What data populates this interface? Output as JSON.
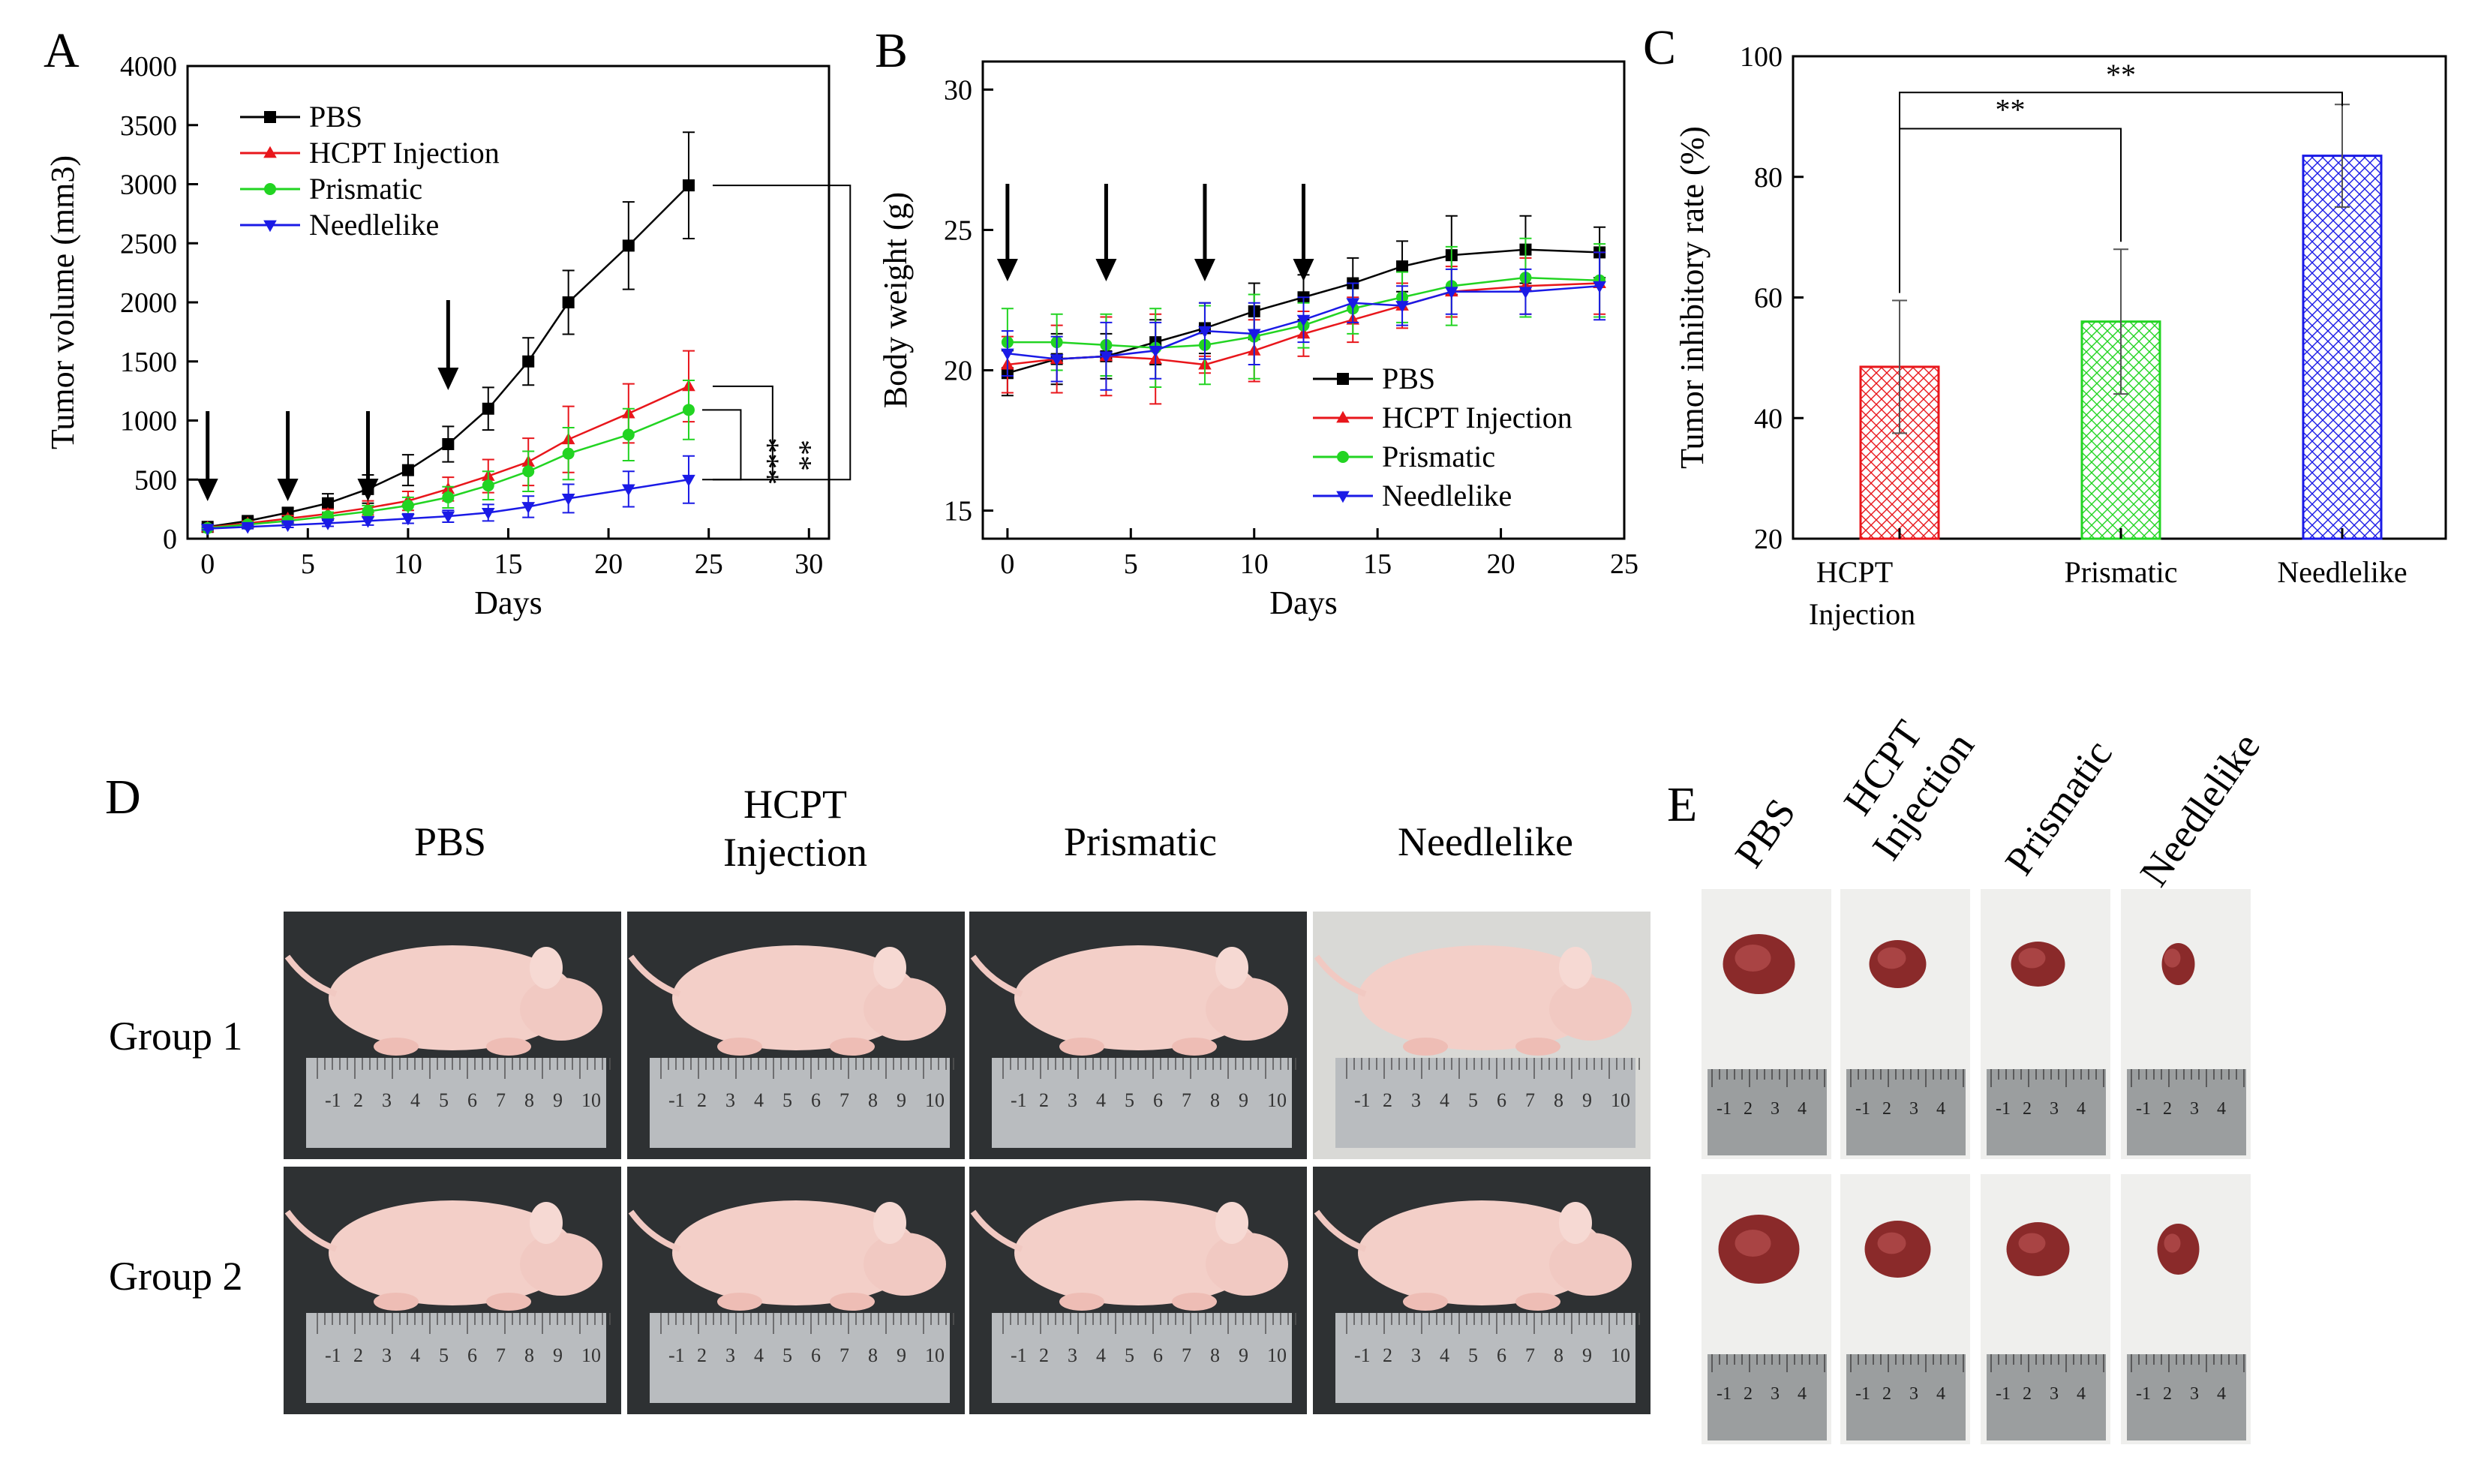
{
  "chart_data": [
    {
      "panel": "A",
      "type": "line",
      "xlabel": "Days",
      "ylabel": "Tumor volume (mm3)",
      "xlim": [
        -1,
        31
      ],
      "ylim": [
        0,
        4000
      ],
      "xticks": [
        0,
        5,
        10,
        15,
        20,
        25,
        30
      ],
      "yticks": [
        0,
        500,
        1000,
        1500,
        2000,
        2500,
        3000,
        3500,
        4000
      ],
      "x": [
        0,
        2,
        4,
        6,
        8,
        10,
        12,
        14,
        16,
        18,
        21,
        24
      ],
      "dosing_days": [
        0,
        4,
        8,
        12
      ],
      "series": [
        {
          "name": "PBS",
          "color": "#000000",
          "marker": "square",
          "values": [
            100,
            150,
            220,
            300,
            420,
            580,
            800,
            1100,
            1500,
            2000,
            2480,
            2990
          ],
          "errors": [
            20,
            30,
            40,
            80,
            120,
            130,
            150,
            180,
            200,
            270,
            370,
            450
          ]
        },
        {
          "name": "HCPT Injection",
          "color": "#e8161b",
          "marker": "triangle",
          "values": [
            95,
            130,
            170,
            210,
            260,
            320,
            420,
            530,
            650,
            840,
            1060,
            1290
          ],
          "errors": [
            15,
            20,
            25,
            40,
            60,
            80,
            100,
            140,
            200,
            280,
            250,
            300
          ]
        },
        {
          "name": "Prismatic",
          "color": "#22d422",
          "marker": "circle",
          "values": [
            90,
            120,
            150,
            190,
            230,
            280,
            350,
            450,
            570,
            720,
            880,
            1090
          ],
          "errors": [
            15,
            20,
            25,
            35,
            50,
            70,
            90,
            120,
            170,
            220,
            220,
            250
          ]
        },
        {
          "name": "Needlelike",
          "color": "#1a1ae6",
          "marker": "triangle-down",
          "values": [
            85,
            100,
            115,
            130,
            150,
            170,
            190,
            220,
            270,
            340,
            420,
            500
          ],
          "errors": [
            10,
            15,
            20,
            25,
            35,
            40,
            50,
            70,
            90,
            120,
            150,
            200
          ]
        }
      ],
      "significance": [
        {
          "label": "**",
          "between": [
            "PBS",
            "Needlelike"
          ]
        },
        {
          "label": "***",
          "between": [
            "HCPT Injection",
            "Needlelike"
          ]
        },
        {
          "label": "**",
          "between": [
            "Prismatic",
            "Needlelike"
          ]
        }
      ]
    },
    {
      "panel": "B",
      "type": "line",
      "xlabel": "Days",
      "ylabel": "Body weight (g)",
      "xlim": [
        -1,
        25
      ],
      "ylim": [
        14,
        31
      ],
      "xticks": [
        0,
        5,
        10,
        15,
        20,
        25
      ],
      "yticks": [
        15,
        20,
        25,
        30
      ],
      "x": [
        0,
        2,
        4,
        6,
        8,
        10,
        12,
        14,
        16,
        18,
        21,
        24
      ],
      "dosing_days": [
        0,
        4,
        8,
        12
      ],
      "series": [
        {
          "name": "PBS",
          "color": "#000000",
          "marker": "square",
          "values": [
            19.9,
            20.4,
            20.5,
            21.0,
            21.5,
            22.1,
            22.6,
            23.1,
            23.7,
            24.1,
            24.3,
            24.2
          ],
          "errors": [
            0.8,
            0.9,
            0.8,
            0.8,
            0.9,
            1.0,
            0.8,
            0.9,
            0.9,
            1.4,
            1.2,
            0.9
          ]
        },
        {
          "name": "HCPT Injection",
          "color": "#e8161b",
          "marker": "triangle",
          "values": [
            20.2,
            20.4,
            20.5,
            20.4,
            20.2,
            20.7,
            21.3,
            21.8,
            22.3,
            22.8,
            23.0,
            23.1
          ],
          "errors": [
            1.0,
            1.2,
            1.4,
            1.6,
            0.3,
            1.1,
            0.8,
            0.8,
            0.8,
            0.9,
            1.0,
            1.1
          ]
        },
        {
          "name": "Prismatic",
          "color": "#22d422",
          "marker": "circle",
          "values": [
            21.0,
            21.0,
            20.9,
            20.8,
            20.9,
            21.2,
            21.6,
            22.2,
            22.6,
            23.0,
            23.3,
            23.2
          ],
          "errors": [
            1.2,
            1.0,
            1.1,
            1.4,
            1.4,
            1.5,
            0.8,
            0.9,
            0.9,
            1.4,
            1.4,
            1.3
          ]
        },
        {
          "name": "Needlelike",
          "color": "#1a1ae6",
          "marker": "triangle-down",
          "values": [
            20.6,
            20.4,
            20.5,
            20.7,
            21.4,
            21.3,
            21.8,
            22.4,
            22.3,
            22.8,
            22.8,
            23.0
          ],
          "errors": [
            0.8,
            0.8,
            1.2,
            1.0,
            1.0,
            1.1,
            0.8,
            0.7,
            0.7,
            0.8,
            0.8,
            1.2
          ]
        }
      ]
    },
    {
      "panel": "C",
      "type": "bar",
      "ylabel": "Tumor inhibitory rate (%)",
      "ylim": [
        20,
        100
      ],
      "yticks": [
        20,
        40,
        60,
        80,
        100
      ],
      "categories": [
        "HCPT Injection",
        "Prismatic",
        "Needlelike"
      ],
      "category_lines": [
        [
          "HCPT",
          "Injection"
        ],
        [
          "Prismatic"
        ],
        [
          "Needlelike"
        ]
      ],
      "values": [
        48.5,
        56,
        83.5
      ],
      "errors": [
        11,
        12,
        8.5
      ],
      "colors": [
        "#e8161b",
        "#22d422",
        "#1a1ae6"
      ],
      "significance": [
        {
          "label": "**",
          "between": [
            "HCPT Injection",
            "Prismatic"
          ]
        },
        {
          "label": "**",
          "between": [
            "HCPT Injection",
            "Needlelike"
          ]
        }
      ]
    }
  ],
  "panels": {
    "a": "A",
    "b": "B",
    "c": "C",
    "d": "D",
    "e": "E"
  },
  "panel_d": {
    "columns": [
      {
        "l1": "PBS",
        "l2": ""
      },
      {
        "l1": "HCPT",
        "l2": "Injection"
      },
      {
        "l1": "Prismatic",
        "l2": ""
      },
      {
        "l1": "Needlelike",
        "l2": ""
      }
    ],
    "rows": [
      "Group 1",
      "Group 2"
    ],
    "ruler_numbers": [
      "-1",
      "2",
      "3",
      "4",
      "5",
      "6",
      "7",
      "8",
      "9",
      "10"
    ]
  },
  "panel_e": {
    "columns": [
      {
        "l1": "PBS",
        "l2": ""
      },
      {
        "l1": "HCPT",
        "l2": "Injection"
      },
      {
        "l1": "Prismatic",
        "l2": ""
      },
      {
        "l1": "Needlelike",
        "l2": ""
      }
    ],
    "ruler_numbers": [
      "-1",
      "2",
      "3",
      "4"
    ]
  }
}
